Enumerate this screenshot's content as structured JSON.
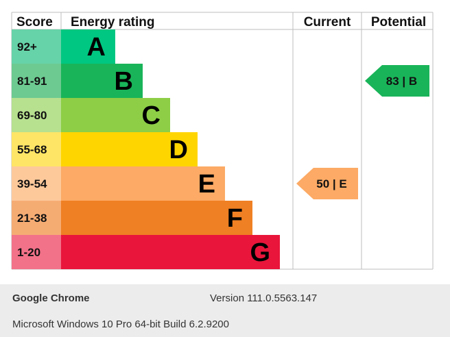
{
  "chart_data": {
    "type": "bar",
    "headers": {
      "score": "Score",
      "rating": "Energy rating",
      "current": "Current",
      "potential": "Potential"
    },
    "bands": [
      {
        "range": "92+",
        "letter": "A",
        "color": "#00c781",
        "score_color": "#66d3a8",
        "level": 1
      },
      {
        "range": "81-91",
        "letter": "B",
        "color": "#19b459",
        "score_color": "#6dca91",
        "level": 2
      },
      {
        "range": "69-80",
        "letter": "C",
        "color": "#8dce46",
        "score_color": "#b7e08f",
        "level": 3
      },
      {
        "range": "55-68",
        "letter": "D",
        "color": "#ffd500",
        "score_color": "#ffe566",
        "level": 4
      },
      {
        "range": "39-54",
        "letter": "E",
        "color": "#fcaa65",
        "score_color": "#fdc99b",
        "level": 5
      },
      {
        "range": "21-38",
        "letter": "F",
        "color": "#ef8023",
        "score_color": "#f5ac73",
        "level": 6
      },
      {
        "range": "1-20",
        "letter": "G",
        "color": "#e9153b",
        "score_color": "#f27289",
        "level": 7
      }
    ],
    "current": {
      "score": 50,
      "band": "E",
      "label": "50 | E",
      "color": "#fcaa65"
    },
    "potential": {
      "score": 83,
      "band": "B",
      "label": "83 | B",
      "color": "#19b459"
    }
  },
  "footer": {
    "browser": "Google Chrome",
    "version": "Version 111.0.5563.147",
    "os": "Microsoft Windows 10 Pro 64-bit Build 6.2.9200"
  }
}
